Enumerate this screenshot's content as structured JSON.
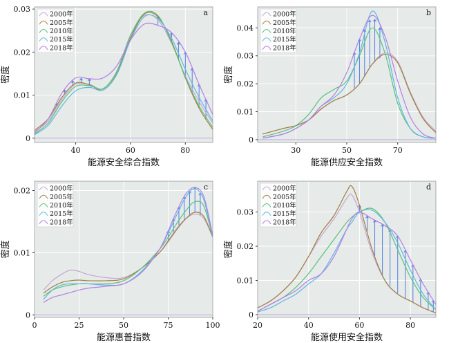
{
  "figure": {
    "legend_labels": [
      "2000年",
      "2005年",
      "2010年",
      "2015年",
      "2018年"
    ],
    "series_colors": [
      "#c4a6d2",
      "#a07d3f",
      "#58c27a",
      "#5fb7e2",
      "#b57de7"
    ],
    "colors": {
      "panel_bg": "#e6eae8",
      "grid": "#ffffff",
      "arrow": "#4f7fe0",
      "legend_bg": "#ffffff",
      "legend_border": "#cccccc"
    }
  },
  "chart_data": [
    {
      "panel": "a",
      "type": "line",
      "xlabel": "能源安全综合指数",
      "ylabel": "密度",
      "xlim": [
        25,
        90
      ],
      "ylim": [
        -0.001,
        0.0305
      ],
      "x_ticks": [
        40,
        60,
        80
      ],
      "y_ticks": [
        0,
        0.01,
        0.02,
        0.03
      ],
      "y_tick_labels": [
        "0",
        "0.01",
        "0.02",
        "0.03"
      ],
      "legend_position": "top-left",
      "grid": true,
      "series": [
        {
          "name": "2000年",
          "x": [
            25,
            30,
            35,
            40,
            45,
            50,
            55,
            60,
            65,
            70,
            75,
            80,
            85,
            90
          ],
          "y": [
            0.0015,
            0.004,
            0.009,
            0.0125,
            0.0125,
            0.0115,
            0.0155,
            0.024,
            0.0285,
            0.0275,
            0.022,
            0.0145,
            0.0085,
            0.0035
          ]
        },
        {
          "name": "2005年",
          "x": [
            25,
            30,
            35,
            40,
            45,
            50,
            55,
            60,
            65,
            70,
            75,
            80,
            85,
            90
          ],
          "y": [
            0.0018,
            0.0045,
            0.0095,
            0.0128,
            0.0124,
            0.0112,
            0.015,
            0.0232,
            0.0288,
            0.0282,
            0.0225,
            0.014,
            0.007,
            0.002
          ]
        },
        {
          "name": "2010年",
          "x": [
            25,
            30,
            35,
            40,
            45,
            50,
            55,
            60,
            65,
            70,
            75,
            80,
            85,
            90
          ],
          "y": [
            0.001,
            0.0035,
            0.0085,
            0.012,
            0.0122,
            0.0115,
            0.0155,
            0.0238,
            0.029,
            0.0285,
            0.0222,
            0.0142,
            0.0075,
            0.0025
          ]
        },
        {
          "name": "2015年",
          "x": [
            25,
            30,
            35,
            40,
            45,
            50,
            55,
            60,
            65,
            70,
            75,
            80,
            85,
            90
          ],
          "y": [
            0.0008,
            0.003,
            0.0075,
            0.011,
            0.0118,
            0.0112,
            0.0148,
            0.0228,
            0.0282,
            0.0278,
            0.0232,
            0.016,
            0.0095,
            0.004
          ]
        },
        {
          "name": "2018年",
          "x": [
            25,
            30,
            35,
            40,
            45,
            50,
            55,
            60,
            65,
            70,
            75,
            80,
            85,
            90
          ],
          "y": [
            0.0012,
            0.0045,
            0.0105,
            0.014,
            0.0138,
            0.014,
            0.0168,
            0.0228,
            0.0265,
            0.0262,
            0.0245,
            0.02,
            0.0125,
            0.0055
          ]
        }
      ]
    },
    {
      "panel": "b",
      "type": "line",
      "xlabel": "能源供应安全指数",
      "ylabel": "密度",
      "xlim": [
        15,
        85
      ],
      "ylim": [
        -0.001,
        0.0475
      ],
      "x_ticks": [
        30,
        50,
        70
      ],
      "y_ticks": [
        0,
        0.01,
        0.02,
        0.03,
        0.04
      ],
      "y_tick_labels": [
        "0",
        "0.01",
        "0.02",
        "0.03",
        "0.04"
      ],
      "legend_position": "top-left",
      "grid": true,
      "series": [
        {
          "name": "2000年",
          "x": [
            17,
            25,
            30,
            35,
            40,
            45,
            50,
            55,
            60,
            65,
            70,
            75,
            80,
            85
          ],
          "y": [
            0.002,
            0.004,
            0.005,
            0.007,
            0.011,
            0.014,
            0.016,
            0.02,
            0.027,
            0.031,
            0.028,
            0.017,
            0.008,
            0.003
          ]
        },
        {
          "name": "2005年",
          "x": [
            17,
            25,
            30,
            35,
            40,
            45,
            50,
            55,
            60,
            65,
            70,
            75,
            80,
            85
          ],
          "y": [
            0.002,
            0.004,
            0.005,
            0.007,
            0.011,
            0.014,
            0.016,
            0.02,
            0.027,
            0.0305,
            0.0275,
            0.0165,
            0.0075,
            0.0025
          ]
        },
        {
          "name": "2010年",
          "x": [
            17,
            25,
            30,
            35,
            40,
            45,
            50,
            55,
            60,
            65,
            70,
            75,
            80,
            85
          ],
          "y": [
            0.001,
            0.003,
            0.005,
            0.009,
            0.015,
            0.018,
            0.021,
            0.03,
            0.04,
            0.031,
            0.013,
            0.004,
            0.001,
            0.0005
          ]
        },
        {
          "name": "2015年",
          "x": [
            17,
            25,
            30,
            35,
            40,
            45,
            50,
            55,
            60,
            65,
            70,
            75,
            80,
            85
          ],
          "y": [
            0.0005,
            0.002,
            0.004,
            0.007,
            0.012,
            0.015,
            0.02,
            0.031,
            0.046,
            0.035,
            0.015,
            0.004,
            0.001,
            0.0005
          ]
        },
        {
          "name": "2018年",
          "x": [
            17,
            25,
            30,
            35,
            40,
            45,
            50,
            55,
            60,
            65,
            70,
            75,
            80,
            85
          ],
          "y": [
            0.0005,
            0.002,
            0.004,
            0.007,
            0.012,
            0.016,
            0.024,
            0.036,
            0.0445,
            0.037,
            0.021,
            0.008,
            0.002,
            0.0005
          ]
        }
      ]
    },
    {
      "panel": "c",
      "type": "line",
      "xlabel": "能源惠普指数",
      "ylabel": "密度",
      "xlim": [
        0,
        100
      ],
      "ylim": [
        -0.0004,
        0.0215
      ],
      "x_ticks": [
        0,
        25,
        50,
        75,
        100
      ],
      "y_ticks": [
        0,
        0.01,
        0.02
      ],
      "y_tick_labels": [
        "0",
        "0.01",
        "0.02"
      ],
      "legend_position": "top-left",
      "grid": true,
      "series": [
        {
          "name": "2000年",
          "x": [
            5,
            10,
            15,
            20,
            25,
            30,
            40,
            50,
            60,
            70,
            75,
            80,
            85,
            90,
            95,
            100
          ],
          "y": [
            0.004,
            0.0055,
            0.0065,
            0.0072,
            0.007,
            0.0065,
            0.006,
            0.006,
            0.0075,
            0.01,
            0.012,
            0.014,
            0.0155,
            0.0162,
            0.0155,
            0.0125
          ]
        },
        {
          "name": "2005年",
          "x": [
            5,
            10,
            15,
            20,
            25,
            30,
            40,
            50,
            60,
            70,
            75,
            80,
            85,
            90,
            95,
            100
          ],
          "y": [
            0.0035,
            0.0045,
            0.0052,
            0.0055,
            0.0056,
            0.0055,
            0.0055,
            0.0058,
            0.0075,
            0.01,
            0.0118,
            0.0138,
            0.0155,
            0.0165,
            0.0158,
            0.0125
          ]
        },
        {
          "name": "2010年",
          "x": [
            5,
            10,
            15,
            20,
            25,
            30,
            40,
            50,
            60,
            70,
            75,
            80,
            85,
            90,
            95,
            100
          ],
          "y": [
            0.003,
            0.004,
            0.0045,
            0.0048,
            0.005,
            0.005,
            0.005,
            0.0055,
            0.0075,
            0.0105,
            0.0125,
            0.0148,
            0.0168,
            0.0182,
            0.0175,
            0.0125
          ]
        },
        {
          "name": "2015年",
          "x": [
            5,
            10,
            15,
            20,
            25,
            30,
            40,
            50,
            60,
            70,
            75,
            80,
            85,
            90,
            95,
            100
          ],
          "y": [
            0.0025,
            0.004,
            0.0048,
            0.005,
            0.005,
            0.005,
            0.0048,
            0.005,
            0.007,
            0.0105,
            0.0132,
            0.0162,
            0.019,
            0.0203,
            0.0185,
            0.0125
          ]
        },
        {
          "name": "2018年",
          "x": [
            5,
            10,
            15,
            20,
            25,
            30,
            40,
            50,
            60,
            70,
            75,
            80,
            85,
            90,
            95,
            100
          ],
          "y": [
            0.002,
            0.0028,
            0.0032,
            0.0036,
            0.004,
            0.0043,
            0.0046,
            0.005,
            0.0068,
            0.0105,
            0.0135,
            0.0168,
            0.0195,
            0.0205,
            0.019,
            0.0128
          ]
        }
      ]
    },
    {
      "panel": "d",
      "type": "line",
      "xlabel": "能源使用安全指数",
      "ylabel": "密度",
      "xlim": [
        20,
        90
      ],
      "ylim": [
        -0.0008,
        0.039
      ],
      "x_ticks": [
        20,
        40,
        60,
        80
      ],
      "y_ticks": [
        0,
        0.01,
        0.02,
        0.03
      ],
      "y_tick_labels": [
        "0",
        "0.01",
        "0.02",
        "0.03"
      ],
      "legend_position": "top-left",
      "grid": true,
      "series": [
        {
          "name": "2000年",
          "x": [
            20,
            25,
            30,
            35,
            40,
            45,
            50,
            55,
            57,
            60,
            65,
            70,
            75,
            80,
            85,
            90
          ],
          "y": [
            0.002,
            0.004,
            0.007,
            0.011,
            0.017,
            0.023,
            0.028,
            0.034,
            0.035,
            0.03,
            0.018,
            0.01,
            0.006,
            0.004,
            0.002,
            0.0005
          ]
        },
        {
          "name": "2005年",
          "x": [
            20,
            25,
            30,
            35,
            40,
            45,
            50,
            55,
            57,
            60,
            65,
            70,
            75,
            80,
            85,
            90
          ],
          "y": [
            0.002,
            0.004,
            0.007,
            0.011,
            0.017,
            0.024,
            0.029,
            0.036,
            0.0375,
            0.032,
            0.019,
            0.01,
            0.006,
            0.004,
            0.002,
            0.0005
          ]
        },
        {
          "name": "2010年",
          "x": [
            20,
            25,
            30,
            35,
            40,
            45,
            50,
            55,
            57,
            60,
            65,
            70,
            75,
            80,
            85,
            90
          ],
          "y": [
            0.001,
            0.003,
            0.005,
            0.008,
            0.012,
            0.017,
            0.022,
            0.027,
            0.0285,
            0.03,
            0.031,
            0.027,
            0.019,
            0.011,
            0.005,
            0.0015
          ]
        },
        {
          "name": "2015年",
          "x": [
            20,
            25,
            30,
            35,
            40,
            45,
            50,
            55,
            57,
            60,
            65,
            70,
            75,
            80,
            85,
            90
          ],
          "y": [
            0.0008,
            0.002,
            0.004,
            0.006,
            0.009,
            0.012,
            0.018,
            0.025,
            0.027,
            0.03,
            0.0305,
            0.027,
            0.021,
            0.013,
            0.006,
            0.0015
          ]
        },
        {
          "name": "2018年",
          "x": [
            20,
            25,
            30,
            35,
            40,
            45,
            50,
            55,
            57,
            60,
            65,
            70,
            75,
            80,
            85,
            90
          ],
          "y": [
            0.001,
            0.003,
            0.005,
            0.007,
            0.01,
            0.012,
            0.017,
            0.025,
            0.028,
            0.03,
            0.028,
            0.026,
            0.023,
            0.016,
            0.009,
            0.003
          ]
        }
      ]
    }
  ]
}
